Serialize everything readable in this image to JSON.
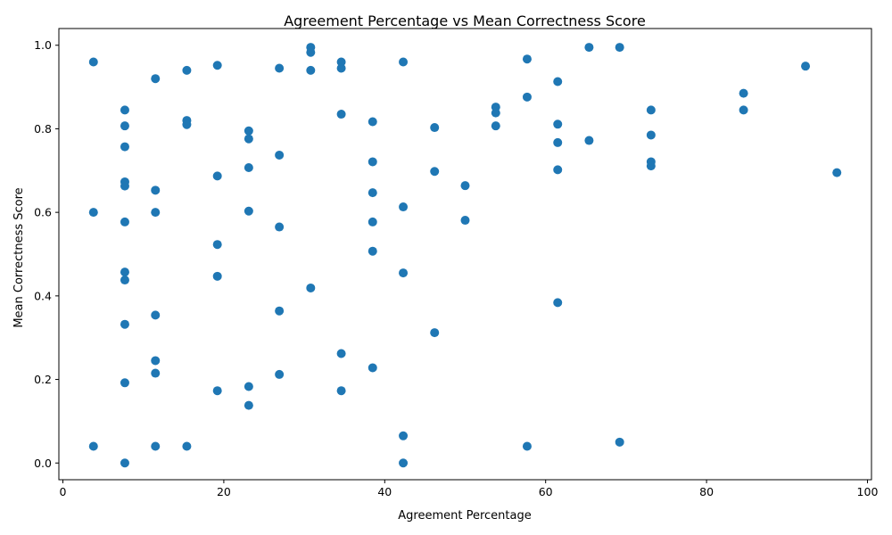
{
  "chart_data": {
    "type": "scatter",
    "title": "Agreement Percentage vs Mean Correctness Score",
    "xlabel": "Agreement Percentage",
    "ylabel": "Mean Correctness Score",
    "xlim": [
      -0.5,
      100.5
    ],
    "ylim": [
      -0.04,
      1.04
    ],
    "xticks": [
      0,
      20,
      40,
      60,
      80,
      100
    ],
    "yticks": [
      0.0,
      0.2,
      0.4,
      0.6,
      0.8,
      1.0
    ],
    "xtick_labels": [
      "0",
      "20",
      "40",
      "60",
      "80",
      "100"
    ],
    "ytick_labels": [
      "0.0",
      "0.2",
      "0.4",
      "0.6",
      "0.8",
      "1.0"
    ],
    "grid": false,
    "marker_color": "#1f77b4",
    "points": [
      [
        3.8,
        0.96
      ],
      [
        3.8,
        0.6
      ],
      [
        3.8,
        0.04
      ],
      [
        7.7,
        0.845
      ],
      [
        7.7,
        0.807
      ],
      [
        7.7,
        0.757
      ],
      [
        7.7,
        0.673
      ],
      [
        7.7,
        0.663
      ],
      [
        7.7,
        0.577
      ],
      [
        7.7,
        0.457
      ],
      [
        7.7,
        0.438
      ],
      [
        7.7,
        0.332
      ],
      [
        7.7,
        0.192
      ],
      [
        7.7,
        0.0
      ],
      [
        11.5,
        0.92
      ],
      [
        11.5,
        0.653
      ],
      [
        11.5,
        0.6
      ],
      [
        11.5,
        0.354
      ],
      [
        11.5,
        0.245
      ],
      [
        11.5,
        0.215
      ],
      [
        11.5,
        0.04
      ],
      [
        15.4,
        0.94
      ],
      [
        15.4,
        0.82
      ],
      [
        15.4,
        0.81
      ],
      [
        15.4,
        0.04
      ],
      [
        19.2,
        0.952
      ],
      [
        19.2,
        0.687
      ],
      [
        19.2,
        0.523
      ],
      [
        19.2,
        0.447
      ],
      [
        19.2,
        0.173
      ],
      [
        23.1,
        0.795
      ],
      [
        23.1,
        0.776
      ],
      [
        23.1,
        0.707
      ],
      [
        23.1,
        0.603
      ],
      [
        23.1,
        0.183
      ],
      [
        23.1,
        0.138
      ],
      [
        26.9,
        0.945
      ],
      [
        26.9,
        0.737
      ],
      [
        26.9,
        0.565
      ],
      [
        26.9,
        0.364
      ],
      [
        26.9,
        0.212
      ],
      [
        30.8,
        0.995
      ],
      [
        30.8,
        0.983
      ],
      [
        30.8,
        0.94
      ],
      [
        30.8,
        0.419
      ],
      [
        34.6,
        0.96
      ],
      [
        34.6,
        0.945
      ],
      [
        34.6,
        0.835
      ],
      [
        34.6,
        0.262
      ],
      [
        34.6,
        0.173
      ],
      [
        38.5,
        0.817
      ],
      [
        38.5,
        0.721
      ],
      [
        38.5,
        0.647
      ],
      [
        38.5,
        0.577
      ],
      [
        38.5,
        0.507
      ],
      [
        38.5,
        0.228
      ],
      [
        42.3,
        0.96
      ],
      [
        42.3,
        0.613
      ],
      [
        42.3,
        0.455
      ],
      [
        42.3,
        0.065
      ],
      [
        42.3,
        0.0
      ],
      [
        46.2,
        0.803
      ],
      [
        46.2,
        0.698
      ],
      [
        46.2,
        0.312
      ],
      [
        50.0,
        0.664
      ],
      [
        50.0,
        0.581
      ],
      [
        53.8,
        0.852
      ],
      [
        53.8,
        0.838
      ],
      [
        53.8,
        0.807
      ],
      [
        57.7,
        0.967
      ],
      [
        57.7,
        0.876
      ],
      [
        57.7,
        0.04
      ],
      [
        61.5,
        0.913
      ],
      [
        61.5,
        0.811
      ],
      [
        61.5,
        0.767
      ],
      [
        61.5,
        0.702
      ],
      [
        61.5,
        0.384
      ],
      [
        65.4,
        0.995
      ],
      [
        65.4,
        0.772
      ],
      [
        69.2,
        0.995
      ],
      [
        69.2,
        0.05
      ],
      [
        73.1,
        0.845
      ],
      [
        73.1,
        0.785
      ],
      [
        73.1,
        0.721
      ],
      [
        73.1,
        0.711
      ],
      [
        84.6,
        0.885
      ],
      [
        84.6,
        0.845
      ],
      [
        92.3,
        0.95
      ],
      [
        96.2,
        0.695
      ]
    ]
  }
}
